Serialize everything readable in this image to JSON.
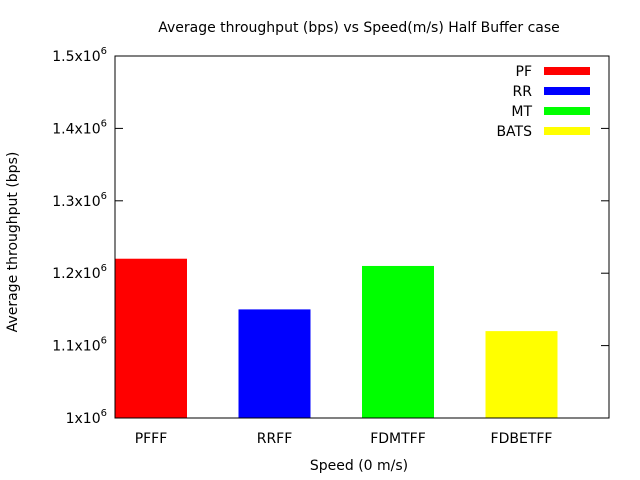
{
  "chart_data": {
    "type": "bar",
    "title": "Average throughput (bps) vs Speed(m/s) Half Buffer case",
    "xlabel": "Speed (0 m/s)",
    "ylabel": "Average throughput (bps)",
    "categories": [
      "PFFF",
      "RRFF",
      "FDMTFF",
      "FDBETFF"
    ],
    "series": [
      {
        "name": "PF",
        "color": "#ff0000",
        "values": [
          1220000,
          null,
          null,
          null
        ]
      },
      {
        "name": "RR",
        "color": "#0000ff",
        "values": [
          null,
          1150000,
          null,
          null
        ]
      },
      {
        "name": "MT",
        "color": "#00ff00",
        "values": [
          null,
          null,
          1210000,
          null
        ]
      },
      {
        "name": "BATS",
        "color": "#ffff00",
        "values": [
          null,
          null,
          null,
          1120000
        ]
      }
    ],
    "ylim": [
      1000000,
      1500000
    ],
    "yticks": [
      {
        "value": 1000000,
        "mantissa": "1x10",
        "exp": "6"
      },
      {
        "value": 1100000,
        "mantissa": "1.1x10",
        "exp": "6"
      },
      {
        "value": 1200000,
        "mantissa": "1.2x10",
        "exp": "6"
      },
      {
        "value": 1300000,
        "mantissa": "1.3x10",
        "exp": "6"
      },
      {
        "value": 1400000,
        "mantissa": "1.4x10",
        "exp": "6"
      },
      {
        "value": 1500000,
        "mantissa": "1.5x10",
        "exp": "6"
      }
    ],
    "grid": false,
    "legend_position": "top-right"
  }
}
